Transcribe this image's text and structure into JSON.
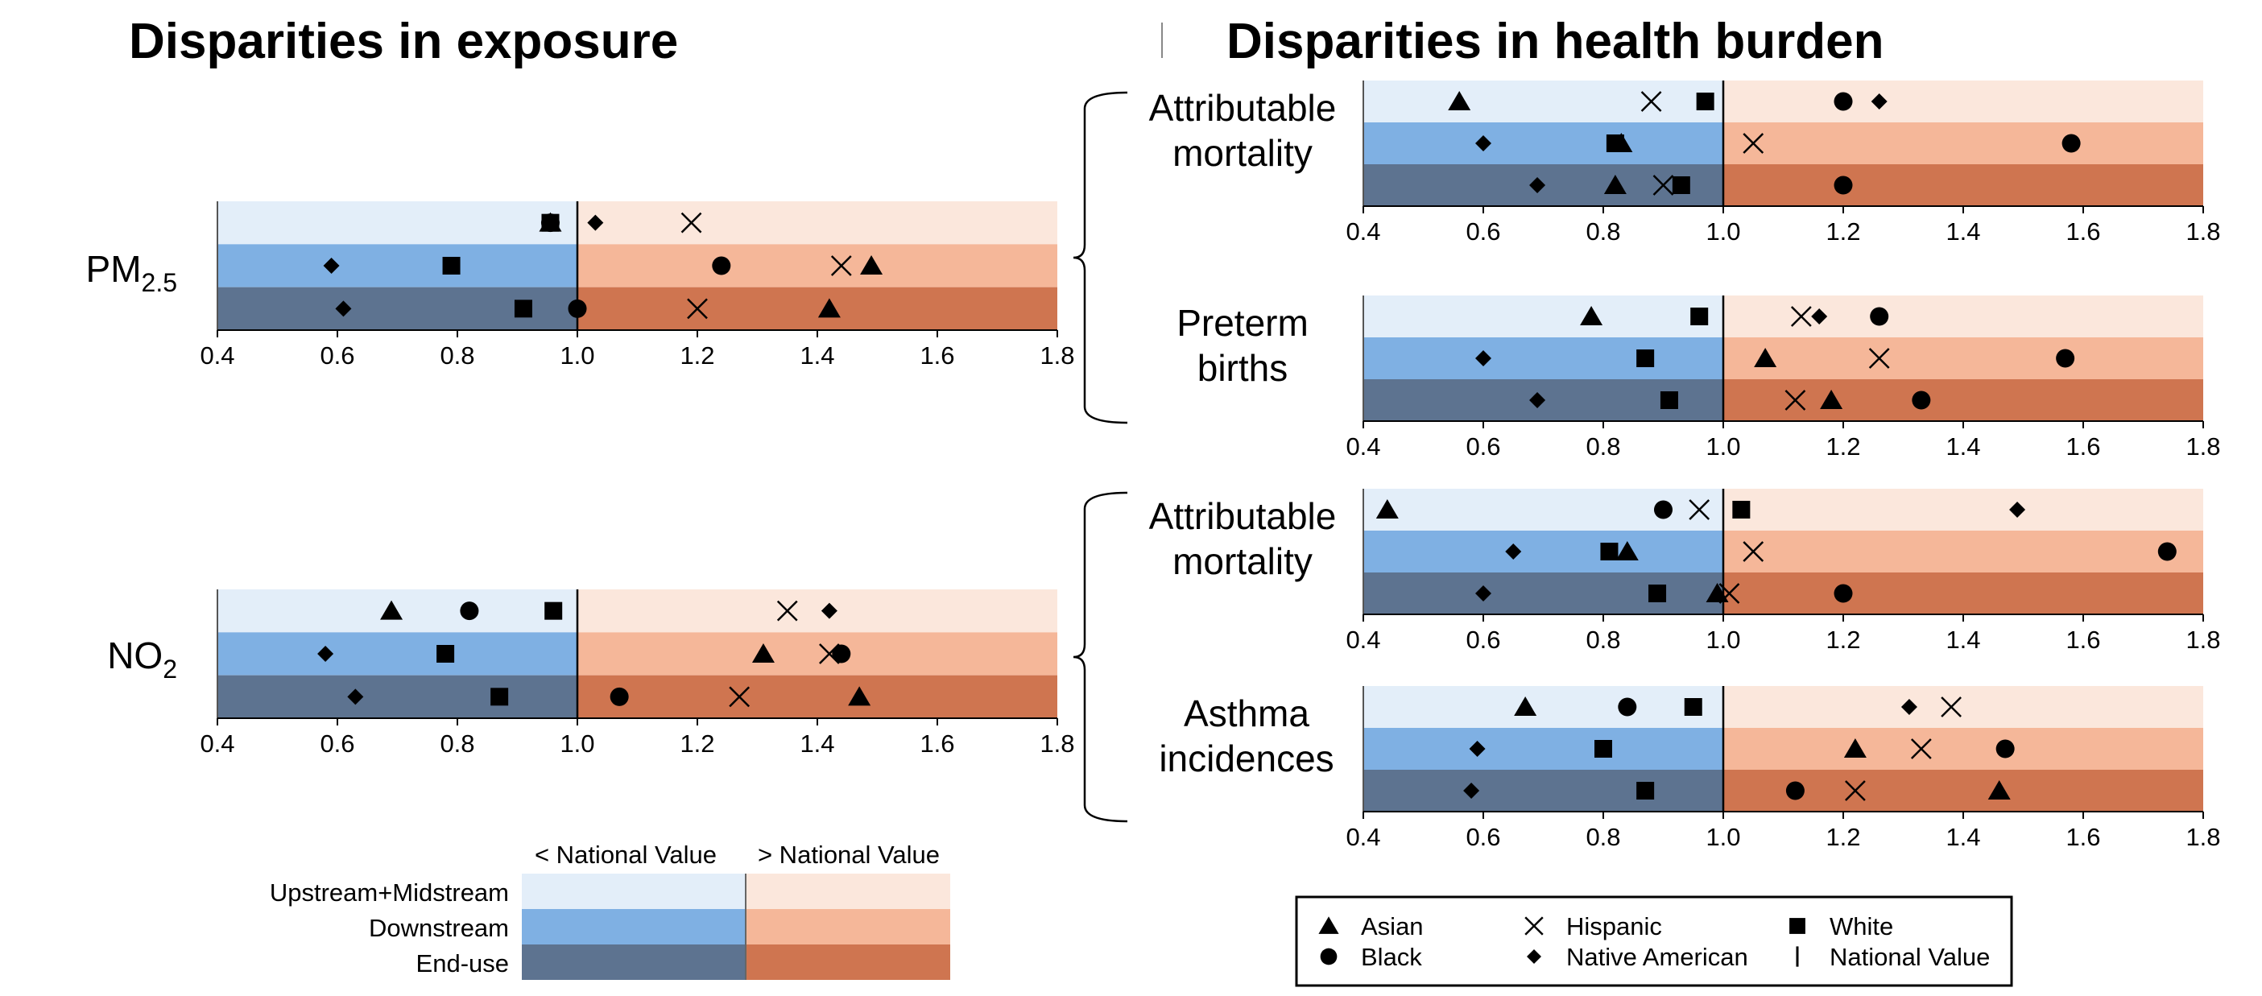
{
  "titles": {
    "left": "Disparities in exposure",
    "right": "Disparities in health burden"
  },
  "colors": {
    "below": [
      "#e3eef9",
      "#7fb0e3",
      "#5d7390"
    ],
    "above": [
      "#fbe7dc",
      "#f5b799",
      "#cf7550"
    ],
    "marker": "#000000",
    "frame": "#555555",
    "legend_border": "#000000"
  },
  "axis": {
    "ticks": [
      "0.4",
      "0.6",
      "0.8",
      "1.0",
      "1.2",
      "1.4",
      "1.6",
      "1.8"
    ],
    "xlim": [
      0.4,
      1.8
    ],
    "reference": 1.0
  },
  "row_labels": [
    "Upstream+Midstream",
    "Downstream",
    "End-use"
  ],
  "band_legend": {
    "below_label": "< National Value",
    "above_label": "> National Value",
    "rows": [
      "Upstream+Midstream",
      "Downstream",
      "End-use"
    ]
  },
  "marker_legend": [
    {
      "name": "Asian",
      "shape": "triangle"
    },
    {
      "name": "Hispanic",
      "shape": "x"
    },
    {
      "name": "White",
      "shape": "square"
    },
    {
      "name": "Black",
      "shape": "circle"
    },
    {
      "name": "Native American",
      "shape": "diamond"
    },
    {
      "name": "National Value",
      "shape": "line"
    }
  ],
  "chart_data": [
    {
      "type": "scatter",
      "panel": "left",
      "group": "Disparities in exposure",
      "label": "PM",
      "label_sub": "2.5",
      "xlim": [
        0.4,
        1.8
      ],
      "rows": [
        {
          "name": "Upstream+Midstream",
          "Asian": 0.955,
          "Black": 0.955,
          "Hispanic": 1.19,
          "White": 0.955,
          "Native American": 1.03
        },
        {
          "name": "Downstream",
          "Asian": 1.49,
          "Black": 1.24,
          "Hispanic": 1.44,
          "White": 0.79,
          "Native American": 0.59
        },
        {
          "name": "End-use",
          "Asian": 1.42,
          "Black": 1.0,
          "Hispanic": 1.2,
          "White": 0.91,
          "Native American": 0.61
        }
      ]
    },
    {
      "type": "scatter",
      "panel": "left",
      "group": "Disparities in exposure",
      "label": "NO",
      "label_sub": "2",
      "xlim": [
        0.4,
        1.8
      ],
      "rows": [
        {
          "name": "Upstream+Midstream",
          "Asian": 0.69,
          "Black": 0.82,
          "Hispanic": 1.35,
          "White": 0.96,
          "Native American": 1.42
        },
        {
          "name": "Downstream",
          "Asian": 1.31,
          "Black": 1.44,
          "Hispanic": 1.42,
          "White": 0.78,
          "Native American": 0.58
        },
        {
          "name": "End-use",
          "Asian": 1.47,
          "Black": 1.07,
          "Hispanic": 1.27,
          "White": 0.87,
          "Native American": 0.63
        }
      ]
    },
    {
      "type": "scatter",
      "panel": "right",
      "group": "PM2.5",
      "label": "Attributable mortality",
      "xlim": [
        0.4,
        1.8
      ],
      "rows": [
        {
          "name": "Upstream+Midstream",
          "Asian": 0.56,
          "Black": 1.2,
          "Hispanic": 0.88,
          "White": 0.97,
          "Native American": 1.26
        },
        {
          "name": "Downstream",
          "Asian": 0.83,
          "Black": 1.58,
          "Hispanic": 1.05,
          "White": 0.82,
          "Native American": 0.6
        },
        {
          "name": "End-use",
          "Asian": 0.82,
          "Black": 1.2,
          "Hispanic": 0.9,
          "White": 0.93,
          "Native American": 0.69
        }
      ]
    },
    {
      "type": "scatter",
      "panel": "right",
      "group": "PM2.5",
      "label": "Preterm births",
      "xlim": [
        0.4,
        1.8
      ],
      "rows": [
        {
          "name": "Upstream+Midstream",
          "Asian": 0.78,
          "Black": 1.26,
          "Hispanic": 1.13,
          "White": 0.96,
          "Native American": 1.16
        },
        {
          "name": "Downstream",
          "Asian": 1.07,
          "Black": 1.57,
          "Hispanic": 1.26,
          "White": 0.87,
          "Native American": 0.6
        },
        {
          "name": "End-use",
          "Asian": 1.18,
          "Black": 1.33,
          "Hispanic": 1.12,
          "White": 0.91,
          "Native American": 0.69
        }
      ]
    },
    {
      "type": "scatter",
      "panel": "right",
      "group": "NO2",
      "label": "Attributable mortality",
      "xlim": [
        0.4,
        1.8
      ],
      "rows": [
        {
          "name": "Upstream+Midstream",
          "Asian": 0.44,
          "Black": 0.9,
          "Hispanic": 0.96,
          "White": 1.03,
          "Native American": 1.49
        },
        {
          "name": "Downstream",
          "Asian": 0.84,
          "Black": 1.74,
          "Hispanic": 1.05,
          "White": 0.81,
          "Native American": 0.65
        },
        {
          "name": "End-use",
          "Asian": 0.99,
          "Black": 1.2,
          "Hispanic": 1.01,
          "White": 0.89,
          "Native American": 0.6
        }
      ]
    },
    {
      "type": "scatter",
      "panel": "right",
      "group": "NO2",
      "label": "Asthma incidences",
      "xlim": [
        0.4,
        1.8
      ],
      "rows": [
        {
          "name": "Upstream+Midstream",
          "Asian": 0.67,
          "Black": 0.84,
          "Hispanic": 1.38,
          "White": 0.95,
          "Native American": 1.31
        },
        {
          "name": "Downstream",
          "Asian": 1.22,
          "Black": 1.47,
          "Hispanic": 1.33,
          "White": 0.8,
          "Native American": 0.59
        },
        {
          "name": "End-use",
          "Asian": 1.46,
          "Black": 1.12,
          "Hispanic": 1.22,
          "White": 0.87,
          "Native American": 0.58
        }
      ]
    }
  ]
}
